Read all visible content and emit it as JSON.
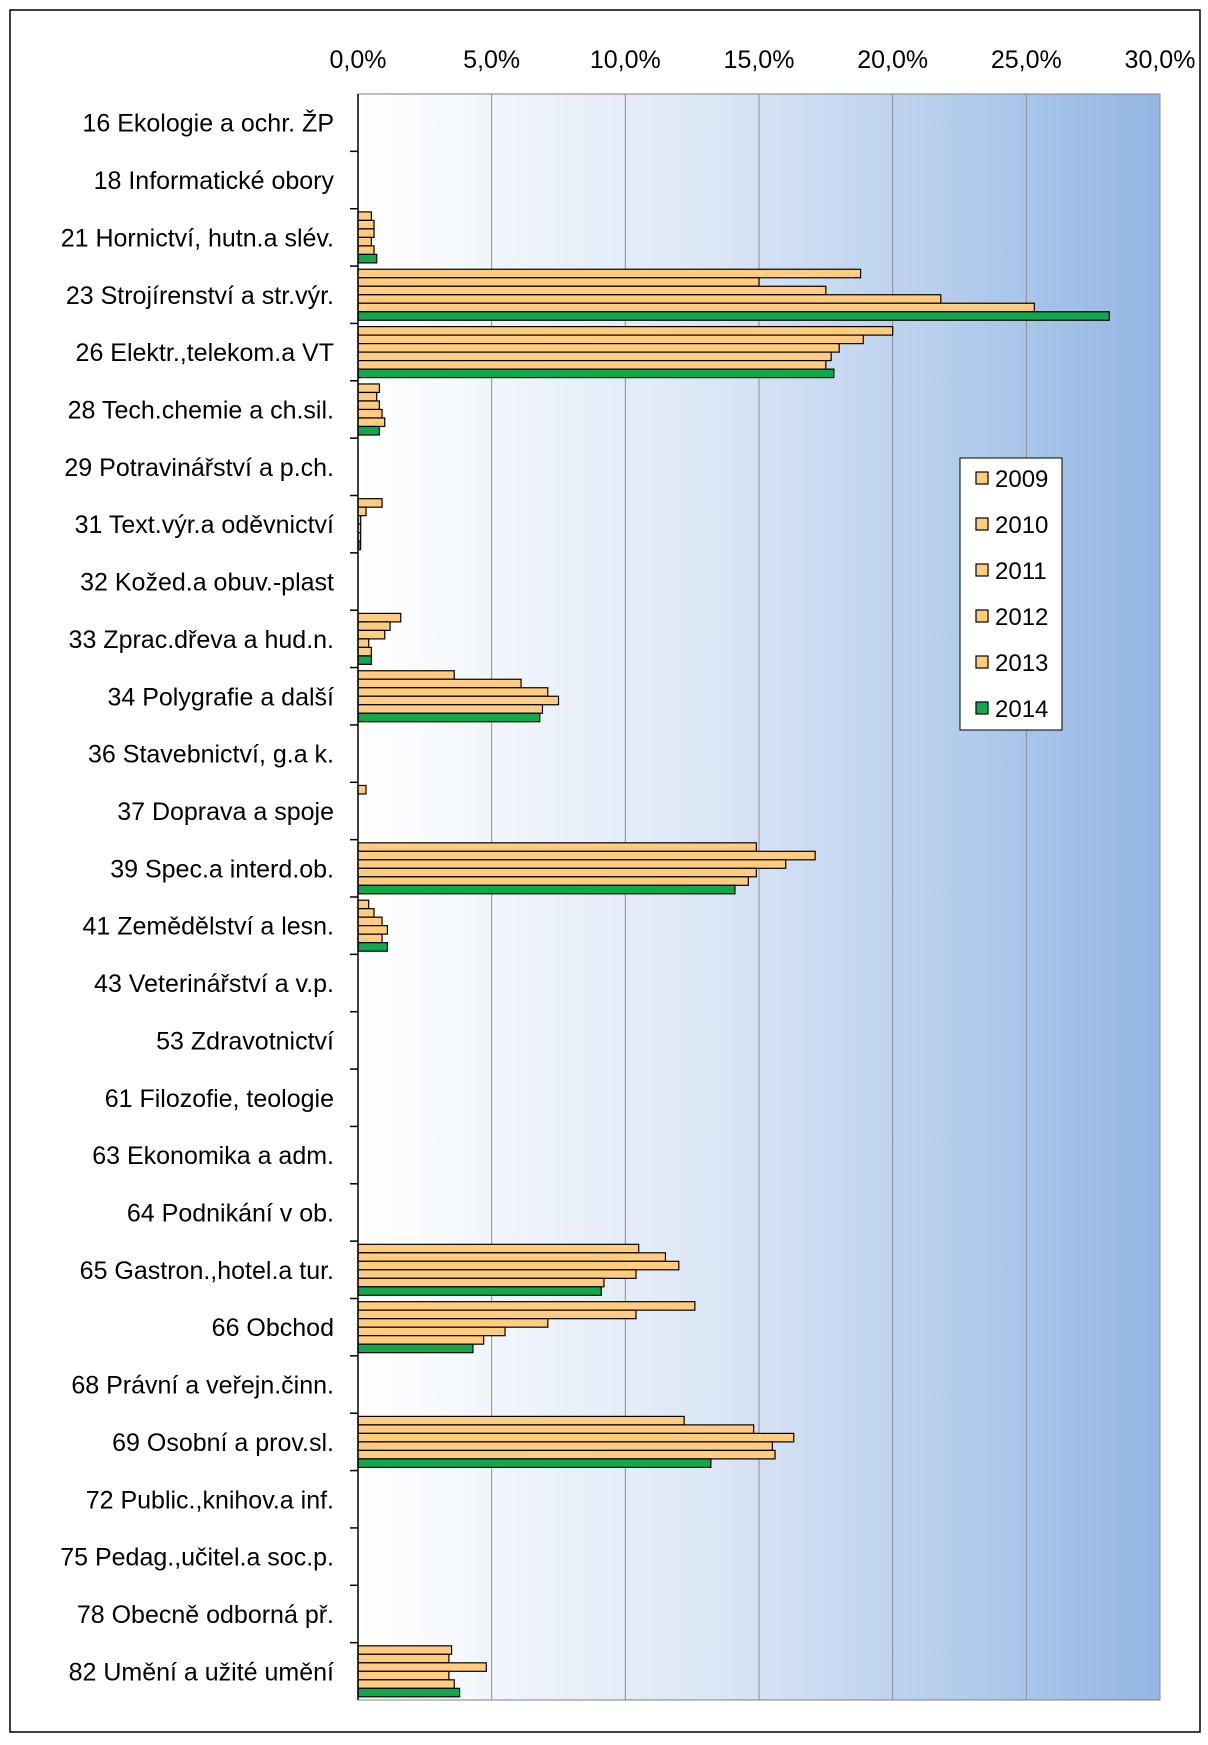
{
  "chart_data": {
    "type": "bar",
    "orientation": "horizontal",
    "title": "",
    "xlabel": "",
    "ylabel": "",
    "xlim": [
      0,
      30
    ],
    "x_ticks": [
      "0,0%",
      "5,0%",
      "10,0%",
      "15,0%",
      "20,0%",
      "25,0%",
      "30,0%"
    ],
    "grid": true,
    "legend_position": "right",
    "categories": [
      "16 Ekologie a ochr. ŽP",
      "18 Informatické obory",
      "21 Hornictví, hutn.a slév.",
      "23 Strojírenství a str.výr.",
      "26 Elektr.,telekom.a VT",
      "28 Tech.chemie a ch.sil.",
      "29 Potravinářství a p.ch.",
      "31 Text.výr.a oděvnictví",
      "32 Kožed.a obuv.-plast",
      "33 Zprac.dřeva a hud.n.",
      "34 Polygrafie a další",
      "36 Stavebnictví, g.a k.",
      "37 Doprava a spoje",
      "39 Spec.a interd.ob.",
      "41 Zemědělství a lesn.",
      "43 Veterinářství a v.p.",
      "53 Zdravotnictví",
      "61 Filozofie, teologie",
      "63 Ekonomika a adm.",
      "64 Podnikání v ob.",
      "65 Gastron.,hotel.a tur.",
      "66 Obchod",
      "68 Právní a veřejn.činn.",
      "69 Osobní a prov.sl.",
      "72 Public.,knihov.a inf.",
      "75 Pedag.,učitel.a soc.p.",
      "78 Obecně odborná př.",
      "82 Umění a užité umění"
    ],
    "series": [
      {
        "name": "2009",
        "color": "#ffcc80",
        "values": [
          0,
          0,
          0.5,
          18.8,
          20.0,
          0.8,
          0,
          0.9,
          0,
          1.6,
          3.6,
          0,
          0.3,
          14.9,
          0.4,
          0,
          0,
          0,
          0,
          0,
          10.5,
          12.6,
          0,
          12.2,
          0,
          0,
          0,
          3.5
        ]
      },
      {
        "name": "2010",
        "color": "#ffcc80",
        "values": [
          0,
          0,
          0.6,
          15.0,
          18.9,
          0.7,
          0,
          0.3,
          0,
          1.2,
          6.1,
          0,
          0,
          17.1,
          0.6,
          0,
          0,
          0,
          0,
          0,
          11.5,
          10.4,
          0,
          14.8,
          0,
          0,
          0,
          3.4
        ]
      },
      {
        "name": "2011",
        "color": "#ffcc80",
        "values": [
          0,
          0,
          0.6,
          17.5,
          18.0,
          0.8,
          0,
          0.1,
          0,
          1.0,
          7.1,
          0,
          0,
          16.0,
          0.9,
          0,
          0,
          0,
          0,
          0,
          12.0,
          7.1,
          0,
          16.3,
          0,
          0,
          0,
          4.8
        ]
      },
      {
        "name": "2012",
        "color": "#ffcc80",
        "values": [
          0,
          0,
          0.5,
          21.8,
          17.7,
          0.9,
          0,
          0.1,
          0,
          0.4,
          7.5,
          0,
          0,
          14.9,
          1.1,
          0,
          0,
          0,
          0,
          0,
          10.4,
          5.5,
          0,
          15.5,
          0,
          0,
          0,
          3.4
        ]
      },
      {
        "name": "2013",
        "color": "#ffcc80",
        "values": [
          0,
          0,
          0.6,
          25.3,
          17.5,
          1.0,
          0,
          0.1,
          0,
          0.5,
          6.9,
          0,
          0,
          14.6,
          0.9,
          0,
          0,
          0,
          0,
          0,
          9.2,
          4.7,
          0,
          15.6,
          0,
          0,
          0,
          3.6
        ]
      },
      {
        "name": "2014",
        "color": "#11a84c",
        "values": [
          0,
          0,
          0.7,
          28.1,
          17.8,
          0.8,
          0,
          0.1,
          0,
          0.5,
          6.8,
          0,
          0,
          14.1,
          1.1,
          0,
          0,
          0,
          0,
          0,
          9.1,
          4.3,
          0,
          13.2,
          0,
          0,
          0,
          3.8
        ]
      }
    ]
  }
}
